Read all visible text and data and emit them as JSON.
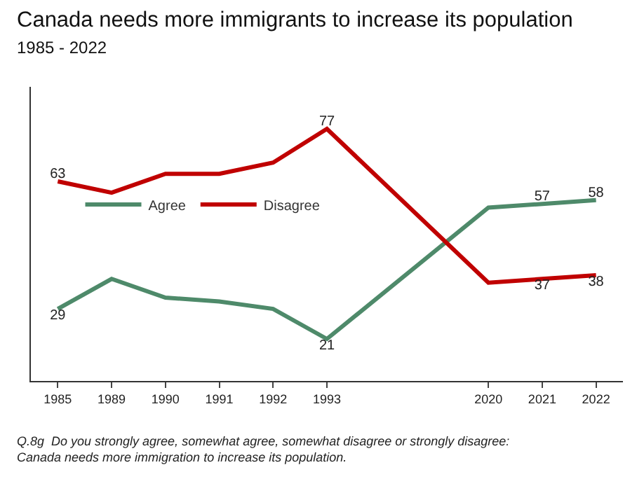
{
  "chart_data": {
    "type": "line",
    "title": "Canada needs more immigrants to increase its population",
    "subtitle": "1985 - 2022",
    "categories": [
      "1985",
      "1989",
      "1990",
      "1991",
      "1992",
      "1993",
      null,
      null,
      "2020",
      "2021",
      "2022"
    ],
    "series": [
      {
        "name": "Agree",
        "color": "#4e8a6a",
        "values": [
          29,
          37,
          32,
          31,
          29,
          21,
          null,
          null,
          56,
          57,
          58
        ],
        "value_labels": [
          "29",
          null,
          null,
          null,
          null,
          "21",
          null,
          null,
          null,
          "57",
          "58"
        ]
      },
      {
        "name": "Disagree",
        "color": "#c00000",
        "values": [
          63,
          60,
          65,
          65,
          68,
          77,
          null,
          null,
          36,
          37,
          38
        ],
        "value_labels": [
          "63",
          null,
          null,
          null,
          null,
          "77",
          null,
          null,
          null,
          "37",
          "38"
        ]
      }
    ],
    "legend": "center",
    "marker": "none",
    "annotations": [
      "Q.8g  Do you strongly agree, somewhat agree, somewhat disagree or strongly disagree:\nCanada needs more immigration to increase its population."
    ]
  }
}
